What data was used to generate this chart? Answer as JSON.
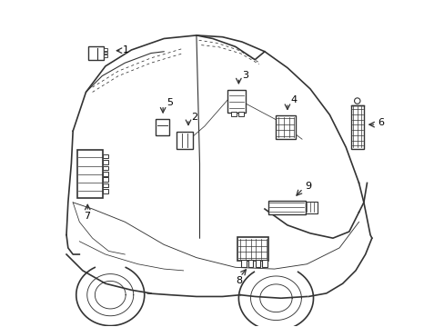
{
  "background": "#ffffff",
  "line_color": "#333333",
  "label_color": "#000000",
  "figsize": [
    4.89,
    3.6
  ],
  "dpi": 100
}
